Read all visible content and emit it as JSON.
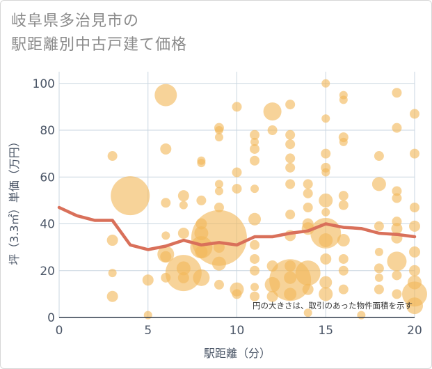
{
  "title": {
    "line1": "岐阜県多治見市の",
    "line2": "駅距離別中古戸建て価格"
  },
  "colors": {
    "bubble": "#f2b85a",
    "line": "#d9705a",
    "grid": "#c9d6e0",
    "text": "#4a5566"
  },
  "chart_data": {
    "type": "scatter",
    "xlabel": "駅距離（分）",
    "ylabel": "坪（3.3㎡）単価（万円）",
    "xlim": [
      0,
      20
    ],
    "ylim": [
      0,
      105
    ],
    "xticks": [
      "0",
      "5",
      "10",
      "15",
      "20"
    ],
    "yticks": [
      "0",
      "20",
      "40",
      "60",
      "80",
      "100"
    ],
    "grid": true,
    "annotation": "円の大きさは、取引のあった物件面積を示す",
    "trend_line": {
      "x": [
        0,
        1,
        2,
        3,
        4,
        5,
        6,
        7,
        8,
        9,
        10,
        11,
        12,
        13,
        14,
        15,
        16,
        17,
        18,
        19,
        20
      ],
      "y": [
        47,
        43.5,
        41.5,
        41.5,
        31,
        29,
        30.5,
        33,
        31,
        32,
        31,
        34.5,
        34.5,
        36,
        37,
        40,
        38.5,
        38,
        36,
        35.5,
        34.5
      ]
    },
    "points": [
      {
        "x": 3,
        "y": 69,
        "r": 7
      },
      {
        "x": 3,
        "y": 33,
        "r": 8
      },
      {
        "x": 3,
        "y": 19,
        "r": 6
      },
      {
        "x": 3,
        "y": 9,
        "r": 8
      },
      {
        "x": 4,
        "y": 52,
        "r": 28
      },
      {
        "x": 5,
        "y": 16,
        "r": 8
      },
      {
        "x": 5,
        "y": 1,
        "r": 6
      },
      {
        "x": 6,
        "y": 95,
        "r": 16
      },
      {
        "x": 6,
        "y": 72,
        "r": 8
      },
      {
        "x": 6,
        "y": 49,
        "r": 7
      },
      {
        "x": 6,
        "y": 35,
        "r": 6
      },
      {
        "x": 6,
        "y": 27,
        "r": 12
      },
      {
        "x": 6,
        "y": 26,
        "r": 8
      },
      {
        "x": 6,
        "y": 17,
        "r": 7
      },
      {
        "x": 7,
        "y": 52,
        "r": 8
      },
      {
        "x": 7,
        "y": 48,
        "r": 6
      },
      {
        "x": 7,
        "y": 36,
        "r": 8
      },
      {
        "x": 7,
        "y": 21,
        "r": 10
      },
      {
        "x": 7,
        "y": 19,
        "r": 26
      },
      {
        "x": 7,
        "y": 17,
        "r": 8
      },
      {
        "x": 8,
        "y": 67,
        "r": 6
      },
      {
        "x": 8,
        "y": 66,
        "r": 6
      },
      {
        "x": 8,
        "y": 50,
        "r": 7
      },
      {
        "x": 8,
        "y": 40,
        "r": 8
      },
      {
        "x": 8,
        "y": 36,
        "r": 10
      },
      {
        "x": 8,
        "y": 30,
        "r": 16
      },
      {
        "x": 8,
        "y": 28,
        "r": 9
      },
      {
        "x": 8,
        "y": 17,
        "r": 12
      },
      {
        "x": 9,
        "y": 81,
        "r": 7
      },
      {
        "x": 9,
        "y": 80,
        "r": 6
      },
      {
        "x": 9,
        "y": 77,
        "r": 6
      },
      {
        "x": 9,
        "y": 57,
        "r": 6
      },
      {
        "x": 9,
        "y": 54,
        "r": 6
      },
      {
        "x": 9,
        "y": 47,
        "r": 7
      },
      {
        "x": 9,
        "y": 34,
        "r": 40
      },
      {
        "x": 9,
        "y": 30,
        "r": 8
      },
      {
        "x": 9,
        "y": 23,
        "r": 10
      },
      {
        "x": 9,
        "y": 14,
        "r": 7
      },
      {
        "x": 10,
        "y": 90,
        "r": 7
      },
      {
        "x": 10,
        "y": 62,
        "r": 7
      },
      {
        "x": 10,
        "y": 55,
        "r": 7
      },
      {
        "x": 10,
        "y": 12,
        "r": 10
      },
      {
        "x": 10,
        "y": 10,
        "r": 7
      },
      {
        "x": 11,
        "y": 78,
        "r": 7
      },
      {
        "x": 11,
        "y": 75,
        "r": 6
      },
      {
        "x": 11,
        "y": 72,
        "r": 7
      },
      {
        "x": 11,
        "y": 67,
        "r": 7
      },
      {
        "x": 11,
        "y": 55,
        "r": 6
      },
      {
        "x": 11,
        "y": 42,
        "r": 9
      },
      {
        "x": 11,
        "y": 31,
        "r": 7
      },
      {
        "x": 11,
        "y": 25,
        "r": 7
      },
      {
        "x": 11,
        "y": 20,
        "r": 7
      },
      {
        "x": 11,
        "y": 13,
        "r": 6
      },
      {
        "x": 11,
        "y": 9,
        "r": 7
      },
      {
        "x": 12,
        "y": 88,
        "r": 13
      },
      {
        "x": 12,
        "y": 80,
        "r": 7
      },
      {
        "x": 12,
        "y": 22,
        "r": 8
      },
      {
        "x": 12,
        "y": 14,
        "r": 11
      },
      {
        "x": 12,
        "y": 9,
        "r": 8
      },
      {
        "x": 13,
        "y": 91,
        "r": 7
      },
      {
        "x": 13,
        "y": 78,
        "r": 7
      },
      {
        "x": 13,
        "y": 74,
        "r": 7
      },
      {
        "x": 13,
        "y": 68,
        "r": 7
      },
      {
        "x": 13,
        "y": 64,
        "r": 7
      },
      {
        "x": 13,
        "y": 57,
        "r": 7
      },
      {
        "x": 13,
        "y": 44,
        "r": 7
      },
      {
        "x": 13,
        "y": 35,
        "r": 8
      },
      {
        "x": 13,
        "y": 22,
        "r": 8
      },
      {
        "x": 13,
        "y": 17,
        "r": 9
      },
      {
        "x": 13,
        "y": 16,
        "r": 30
      },
      {
        "x": 13,
        "y": 10,
        "r": 9
      },
      {
        "x": 14,
        "y": 57,
        "r": 7
      },
      {
        "x": 14,
        "y": 53,
        "r": 7
      },
      {
        "x": 14,
        "y": 47,
        "r": 7
      },
      {
        "x": 14,
        "y": 40,
        "r": 8
      },
      {
        "x": 14,
        "y": 38,
        "r": 9
      },
      {
        "x": 14,
        "y": 19,
        "r": 18
      },
      {
        "x": 14,
        "y": 12,
        "r": 8
      },
      {
        "x": 14,
        "y": 2,
        "r": 6
      },
      {
        "x": 15,
        "y": 100,
        "r": 6
      },
      {
        "x": 15,
        "y": 85,
        "r": 6
      },
      {
        "x": 15,
        "y": 70,
        "r": 7
      },
      {
        "x": 15,
        "y": 64,
        "r": 7
      },
      {
        "x": 15,
        "y": 62,
        "r": 6
      },
      {
        "x": 15,
        "y": 50,
        "r": 10
      },
      {
        "x": 15,
        "y": 45,
        "r": 6
      },
      {
        "x": 15,
        "y": 36,
        "r": 22
      },
      {
        "x": 15,
        "y": 33,
        "r": 10
      },
      {
        "x": 15,
        "y": 25,
        "r": 8
      },
      {
        "x": 15,
        "y": 15,
        "r": 9
      },
      {
        "x": 15,
        "y": 10,
        "r": 10
      },
      {
        "x": 16,
        "y": 95,
        "r": 6
      },
      {
        "x": 16,
        "y": 93,
        "r": 6
      },
      {
        "x": 16,
        "y": 77,
        "r": 7
      },
      {
        "x": 16,
        "y": 75,
        "r": 6
      },
      {
        "x": 16,
        "y": 52,
        "r": 7
      },
      {
        "x": 16,
        "y": 48,
        "r": 7
      },
      {
        "x": 16,
        "y": 33,
        "r": 9
      },
      {
        "x": 16,
        "y": 25,
        "r": 7
      },
      {
        "x": 16,
        "y": 20,
        "r": 7
      },
      {
        "x": 16,
        "y": 12,
        "r": 7
      },
      {
        "x": 17,
        "y": 1,
        "r": 6
      },
      {
        "x": 18,
        "y": 69,
        "r": 7
      },
      {
        "x": 18,
        "y": 57,
        "r": 10
      },
      {
        "x": 18,
        "y": 39,
        "r": 7
      },
      {
        "x": 18,
        "y": 28,
        "r": 6
      },
      {
        "x": 18,
        "y": 21,
        "r": 7
      },
      {
        "x": 18,
        "y": 17,
        "r": 6
      },
      {
        "x": 18,
        "y": 12,
        "r": 7
      },
      {
        "x": 19,
        "y": 96,
        "r": 7
      },
      {
        "x": 19,
        "y": 81,
        "r": 7
      },
      {
        "x": 19,
        "y": 54,
        "r": 7
      },
      {
        "x": 19,
        "y": 51,
        "r": 7
      },
      {
        "x": 19,
        "y": 41,
        "r": 7
      },
      {
        "x": 19,
        "y": 38,
        "r": 8
      },
      {
        "x": 19,
        "y": 34,
        "r": 8
      },
      {
        "x": 19,
        "y": 24,
        "r": 14
      },
      {
        "x": 19,
        "y": 18,
        "r": 7
      },
      {
        "x": 19,
        "y": 10,
        "r": 7
      },
      {
        "x": 20,
        "y": 87,
        "r": 7
      },
      {
        "x": 20,
        "y": 70,
        "r": 7
      },
      {
        "x": 20,
        "y": 47,
        "r": 7
      },
      {
        "x": 20,
        "y": 39,
        "r": 8
      },
      {
        "x": 20,
        "y": 28,
        "r": 8
      },
      {
        "x": 20,
        "y": 20,
        "r": 8
      },
      {
        "x": 20,
        "y": 15,
        "r": 10
      },
      {
        "x": 20,
        "y": 10,
        "r": 18
      },
      {
        "x": 20,
        "y": 5,
        "r": 12
      }
    ]
  }
}
